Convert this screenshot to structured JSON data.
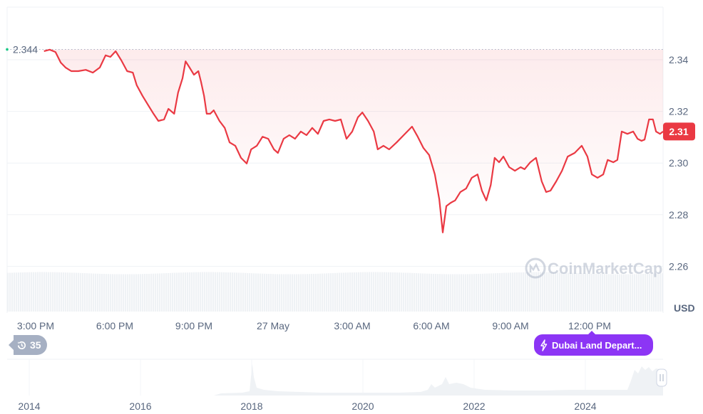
{
  "chart_data": {
    "type": "line",
    "currency_label": "USD",
    "watermark": "CoinMarketCap",
    "line_color": "#ea3943",
    "fill_color": "#ea3943",
    "ylim": [
      2.25,
      2.355
    ],
    "grid": true,
    "y_ticks": [
      "2.34",
      "2.32",
      "2.30",
      "2.28",
      "2.26"
    ],
    "y_tick_values": [
      2.34,
      2.32,
      2.3,
      2.28,
      2.26
    ],
    "x_ticks": [
      "3:00 PM",
      "6:00 PM",
      "9:00 PM",
      "27 May",
      "3:00 AM",
      "6:00 AM",
      "9:00 AM",
      "12:00 PM"
    ],
    "x_tick_times": [
      "15:00",
      "18:00",
      "21:00",
      "24:00",
      "27:00",
      "30:00",
      "33:00",
      "36:00"
    ],
    "open_price_label": "2.344",
    "open_price": 2.344,
    "current_price_label": "2.31",
    "current_price_color": "#ea3943",
    "points": [
      [
        "15:19",
        2.3433
      ],
      [
        "15:32",
        2.3439
      ],
      [
        "15:45",
        2.343
      ],
      [
        "15:57",
        2.3389
      ],
      [
        "16:08",
        2.337
      ],
      [
        "16:21",
        2.3356
      ],
      [
        "16:37",
        2.3356
      ],
      [
        "16:54",
        2.3361
      ],
      [
        "17:10",
        2.335
      ],
      [
        "17:26",
        2.337
      ],
      [
        "17:39",
        2.3417
      ],
      [
        "17:50",
        2.3411
      ],
      [
        "18:02",
        2.3433
      ],
      [
        "18:15",
        2.3397
      ],
      [
        "18:28",
        2.3356
      ],
      [
        "18:41",
        2.335
      ],
      [
        "18:50",
        2.3301
      ],
      [
        "19:03",
        2.326
      ],
      [
        "19:16",
        2.3224
      ],
      [
        "19:28",
        2.3191
      ],
      [
        "19:39",
        2.3163
      ],
      [
        "19:52",
        2.3169
      ],
      [
        "20:02",
        2.321
      ],
      [
        "20:15",
        2.3191
      ],
      [
        "20:24",
        2.3273
      ],
      [
        "20:34",
        2.3328
      ],
      [
        "20:41",
        2.3394
      ],
      [
        "20:50",
        2.337
      ],
      [
        "21:00",
        2.3342
      ],
      [
        "21:10",
        2.3356
      ],
      [
        "21:16",
        2.3315
      ],
      [
        "21:23",
        2.326
      ],
      [
        "21:29",
        2.3191
      ],
      [
        "21:37",
        2.3191
      ],
      [
        "21:45",
        2.3204
      ],
      [
        "21:58",
        2.3163
      ],
      [
        "22:10",
        2.3136
      ],
      [
        "22:21",
        2.308
      ],
      [
        "22:34",
        2.3067
      ],
      [
        "22:47",
        2.302
      ],
      [
        "23:00",
        2.2998
      ],
      [
        "23:10",
        2.3053
      ],
      [
        "23:23",
        2.3067
      ],
      [
        "23:36",
        2.3102
      ],
      [
        "23:49",
        2.3094
      ],
      [
        "24:02",
        2.3053
      ],
      [
        "24:11",
        2.3039
      ],
      [
        "24:24",
        2.3094
      ],
      [
        "24:37",
        2.3108
      ],
      [
        "24:50",
        2.3094
      ],
      [
        "25:03",
        2.3122
      ],
      [
        "25:16",
        2.3108
      ],
      [
        "25:29",
        2.3136
      ],
      [
        "25:42",
        2.3113
      ],
      [
        "25:55",
        2.3163
      ],
      [
        "26:08",
        2.3169
      ],
      [
        "26:21",
        2.3163
      ],
      [
        "26:34",
        2.3169
      ],
      [
        "26:47",
        2.3094
      ],
      [
        "27:00",
        2.3122
      ],
      [
        "27:13",
        2.3177
      ],
      [
        "27:23",
        2.3196
      ],
      [
        "27:36",
        2.3163
      ],
      [
        "27:49",
        2.3122
      ],
      [
        "27:58",
        2.3053
      ],
      [
        "28:11",
        2.3067
      ],
      [
        "28:24",
        2.3053
      ],
      [
        "28:41",
        2.308
      ],
      [
        "28:57",
        2.3108
      ],
      [
        "29:16",
        2.3141
      ],
      [
        "29:29",
        2.3102
      ],
      [
        "29:42",
        2.3058
      ],
      [
        "29:55",
        2.3031
      ],
      [
        "30:08",
        2.2956
      ],
      [
        "30:18",
        2.286
      ],
      [
        "30:26",
        2.2731
      ],
      [
        "30:34",
        2.2833
      ],
      [
        "30:44",
        2.2846
      ],
      [
        "30:54",
        2.2855
      ],
      [
        "31:06",
        2.2888
      ],
      [
        "31:19",
        2.2901
      ],
      [
        "31:32",
        2.2943
      ],
      [
        "31:45",
        2.2956
      ],
      [
        "31:55",
        2.2893
      ],
      [
        "32:05",
        2.2855
      ],
      [
        "32:15",
        2.2915
      ],
      [
        "32:24",
        2.302
      ],
      [
        "32:34",
        2.3003
      ],
      [
        "32:44",
        2.3025
      ],
      [
        "32:57",
        2.2984
      ],
      [
        "33:10",
        2.297
      ],
      [
        "33:23",
        2.2984
      ],
      [
        "33:32",
        2.2976
      ],
      [
        "33:45",
        2.3003
      ],
      [
        "33:58",
        2.302
      ],
      [
        "34:11",
        2.2929
      ],
      [
        "34:21",
        2.2888
      ],
      [
        "34:31",
        2.2893
      ],
      [
        "34:44",
        2.2929
      ],
      [
        "34:57",
        2.297
      ],
      [
        "35:10",
        2.3025
      ],
      [
        "35:26",
        2.3039
      ],
      [
        "35:42",
        2.3067
      ],
      [
        "35:55",
        2.3025
      ],
      [
        "36:05",
        2.2956
      ],
      [
        "36:18",
        2.2943
      ],
      [
        "36:31",
        2.2956
      ],
      [
        "36:41",
        2.3012
      ],
      [
        "36:54",
        2.3003
      ],
      [
        "37:03",
        2.3012
      ],
      [
        "37:13",
        2.3122
      ],
      [
        "37:26",
        2.3113
      ],
      [
        "37:39",
        2.3122
      ],
      [
        "37:49",
        2.3094
      ],
      [
        "37:58",
        2.3086
      ],
      [
        "38:05",
        2.3091
      ],
      [
        "38:15",
        2.3169
      ],
      [
        "38:24",
        2.3169
      ],
      [
        "38:31",
        2.3122
      ],
      [
        "38:40",
        2.3113
      ],
      [
        "38:47",
        2.3122
      ]
    ],
    "navigator": {
      "x_ticks": [
        "2014",
        "2016",
        "2018",
        "2020",
        "2022",
        "2024"
      ]
    }
  },
  "controls": {
    "history_count": "35",
    "history_icon": "clock-history-icon",
    "news_label": "Dubai Land Depart...",
    "news_icon": "lightning-icon",
    "news_color": "#8c35f5"
  }
}
